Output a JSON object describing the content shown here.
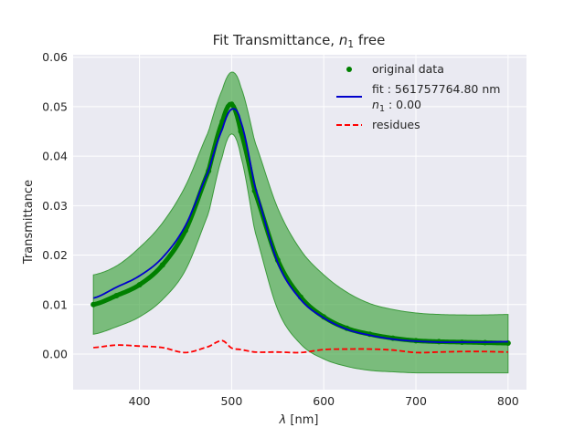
{
  "chart_data": {
    "type": "line",
    "title": "Fit Transmittance, n_1 free",
    "title_parts": {
      "prefix": "Fit Transmittance, ",
      "var": "n",
      "sub": "1",
      "suffix": " free"
    },
    "xlabel": "λ [nm]",
    "xlabel_parts": {
      "var": "λ",
      "rest": " [nm]"
    },
    "ylabel": "Transmittance",
    "xlim": [
      328,
      820
    ],
    "ylim": [
      -0.0072,
      0.0605
    ],
    "xticks": [
      400,
      500,
      600,
      700,
      800
    ],
    "yticks": [
      0.0,
      0.01,
      0.02,
      0.03,
      0.04,
      0.05,
      0.06
    ],
    "ytick_labels": [
      "0.00",
      "0.01",
      "0.02",
      "0.03",
      "0.04",
      "0.05",
      "0.06"
    ],
    "grid": true,
    "legend_position": "top-right",
    "x": [
      350,
      375,
      400,
      425,
      450,
      475,
      490,
      500,
      510,
      525,
      550,
      575,
      600,
      625,
      650,
      675,
      700,
      725,
      750,
      775,
      800
    ],
    "series": [
      {
        "name": "original data",
        "style": "markers",
        "color": "#008000",
        "values": [
          0.01,
          0.0118,
          0.014,
          0.018,
          0.025,
          0.037,
          0.047,
          0.0505,
          0.045,
          0.033,
          0.019,
          0.0115,
          0.0075,
          0.0052,
          0.004,
          0.0032,
          0.0027,
          0.0025,
          0.0024,
          0.0023,
          0.0022
        ]
      },
      {
        "name_parts": {
          "fit_line": "fit : 561757764.80 nm",
          "n_var": "n",
          "n_sub": "1",
          "n_rest": " : 0.00"
        },
        "style": "line",
        "color": "#0000cc",
        "values": [
          0.0113,
          0.0135,
          0.0158,
          0.0195,
          0.026,
          0.037,
          0.0455,
          0.0495,
          0.047,
          0.034,
          0.0185,
          0.011,
          0.0073,
          0.005,
          0.0038,
          0.003,
          0.0026,
          0.0024,
          0.0024,
          0.0024,
          0.0025
        ]
      },
      {
        "name": "residues",
        "style": "dashed",
        "color": "#ff0000",
        "values": [
          0.0013,
          0.0018,
          0.0016,
          0.0013,
          0.0003,
          0.0015,
          0.0027,
          0.0012,
          0.0009,
          0.0004,
          0.0004,
          0.0003,
          0.0009,
          0.001,
          0.001,
          0.0008,
          0.0003,
          0.0004,
          0.0005,
          0.0005,
          0.0004
        ]
      }
    ],
    "band": {
      "color": "#4aa84a",
      "upper": [
        0.016,
        0.0178,
        0.0215,
        0.0265,
        0.034,
        0.045,
        0.0535,
        0.057,
        0.054,
        0.043,
        0.0295,
        0.021,
        0.016,
        0.0125,
        0.0102,
        0.009,
        0.0083,
        0.008,
        0.0079,
        0.0079,
        0.008
      ],
      "lower": [
        0.004,
        0.0055,
        0.0075,
        0.011,
        0.017,
        0.0285,
        0.04,
        0.0445,
        0.04,
        0.025,
        0.009,
        0.002,
        -0.001,
        -0.0025,
        -0.0033,
        -0.0036,
        -0.0038,
        -0.0038,
        -0.0038,
        -0.0038,
        -0.0038
      ]
    }
  }
}
